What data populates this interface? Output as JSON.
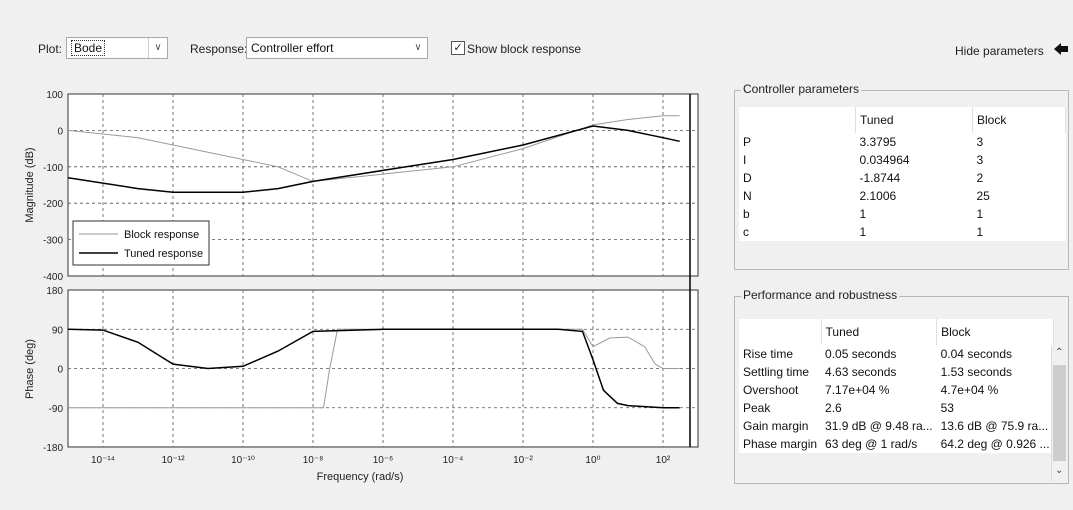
{
  "toolbar": {
    "plot_label": "Plot:",
    "plot_value": "Bode",
    "response_label": "Response:",
    "response_value": "Controller effort",
    "show_block_response_label": "Show block response",
    "show_block_response_checked": true,
    "hide_parameters_label": "Hide parameters",
    "hide_parameters_icon": "arrow-left-icon",
    "dropdown_icon": "chevron-down-icon"
  },
  "chart_data": [
    {
      "type": "line",
      "panel": "magnitude",
      "ylabel": "Magnitude (dB)",
      "yticks": [
        "100",
        "0",
        "-100",
        "-200",
        "-300",
        "-400"
      ],
      "ylim": [
        -400,
        100
      ],
      "xscale": "log",
      "xlim": [
        1e-15,
        1000
      ],
      "grid": true,
      "legend_position": "bottom-left",
      "series": [
        {
          "name": "Block response",
          "color": "#9a9a9a",
          "x": [
            1e-15,
            1e-13,
            1e-11,
            1e-09,
            1e-08,
            0.0001,
            0.01,
            1,
            10,
            100,
            300
          ],
          "y": [
            0,
            -20,
            -60,
            -100,
            -140,
            -100,
            -50,
            15,
            30,
            40,
            40
          ]
        },
        {
          "name": "Tuned response",
          "color": "#000000",
          "x": [
            1e-15,
            1e-13,
            1e-12,
            1e-10,
            1e-09,
            1e-08,
            1e-06,
            0.0001,
            0.01,
            1,
            10,
            100,
            300
          ],
          "y": [
            -130,
            -160,
            -170,
            -170,
            -160,
            -140,
            -110,
            -80,
            -40,
            12,
            0,
            -20,
            -30
          ]
        }
      ]
    },
    {
      "type": "line",
      "panel": "phase",
      "ylabel": "Phase (deg)",
      "xlabel": "Frequency  (rad/s)",
      "yticks": [
        "180",
        "90",
        "0",
        "-90",
        "-180"
      ],
      "ylim": [
        -180,
        180
      ],
      "xscale": "log",
      "xlim": [
        1e-15,
        1000
      ],
      "xticks": [
        "10⁻¹⁴",
        "10⁻¹²",
        "10⁻¹⁰",
        "10⁻⁸",
        "10⁻⁶",
        "10⁻⁴",
        "10⁻²",
        "10⁰",
        "10²"
      ],
      "grid": true,
      "series": [
        {
          "name": "Block response",
          "color": "#9a9a9a",
          "x": [
            1e-15,
            1e-09,
            2e-08,
            3e-08,
            5e-08,
            0.0001,
            0.1,
            0.5,
            1,
            3,
            10,
            30,
            60,
            100,
            300
          ],
          "y": [
            -90,
            -90,
            -90,
            0,
            90,
            90,
            90,
            90,
            50,
            70,
            72,
            50,
            10,
            0,
            0
          ]
        },
        {
          "name": "Tuned response",
          "color": "#000000",
          "x": [
            1e-15,
            1e-14,
            1e-13,
            1e-12,
            1e-11,
            1e-10,
            1e-09,
            1e-08,
            1e-06,
            0.0001,
            0.1,
            0.5,
            1,
            2,
            5,
            10,
            100,
            300
          ],
          "y": [
            90,
            88,
            60,
            10,
            0,
            5,
            40,
            85,
            90,
            90,
            90,
            85,
            20,
            -50,
            -80,
            -85,
            -90,
            -90
          ]
        }
      ]
    }
  ],
  "controller_parameters": {
    "title": "Controller parameters",
    "columns": [
      "",
      "Tuned",
      "Block"
    ],
    "rows": [
      [
        "P",
        "3.3795",
        "3"
      ],
      [
        "I",
        "0.034964",
        "3"
      ],
      [
        "D",
        "-1.8744",
        "2"
      ],
      [
        "N",
        "2.1006",
        "25"
      ],
      [
        "b",
        "1",
        "1"
      ],
      [
        "c",
        "1",
        "1"
      ]
    ]
  },
  "performance": {
    "title": "Performance and robustness",
    "columns": [
      "",
      "Tuned",
      "Block"
    ],
    "rows": [
      [
        "Rise time",
        "0.05 seconds",
        "0.04 seconds"
      ],
      [
        "Settling time",
        "4.63 seconds",
        "1.53 seconds"
      ],
      [
        "Overshoot",
        "7.17e+04 %",
        "4.7e+04 %"
      ],
      [
        "Peak",
        "2.6",
        "53"
      ],
      [
        "Gain margin",
        "31.9 dB @ 9.48 ra...",
        "13.6 dB @ 75.9 ra..."
      ],
      [
        "Phase margin",
        "63 deg @ 1 rad/s",
        "64.2 deg @ 0.926 ..."
      ]
    ],
    "scroll_up_icon": "caret-up-icon",
    "scroll_down_icon": "caret-down-icon"
  }
}
